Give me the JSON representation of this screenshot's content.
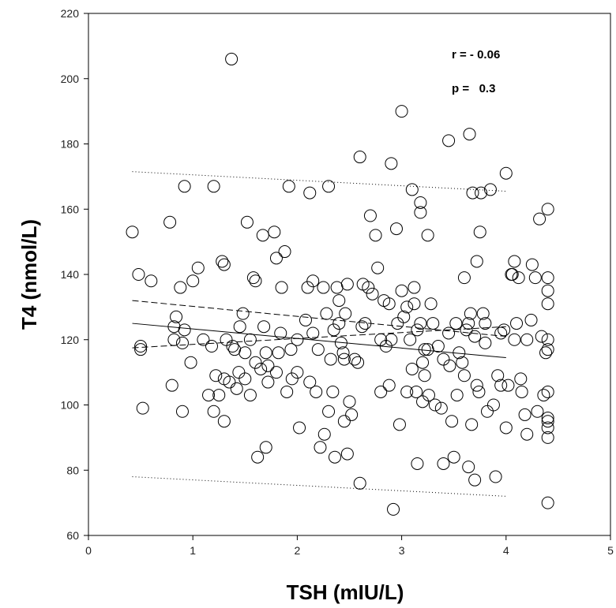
{
  "chart_data": {
    "type": "scatter",
    "title": "",
    "xlabel": "TSH (mIU/L)",
    "ylabel": "T4 (nmol/L)",
    "xlim": [
      0,
      5
    ],
    "ylim": [
      60,
      220
    ],
    "xticks": [
      0,
      1,
      2,
      3,
      4,
      5
    ],
    "yticks": [
      60,
      80,
      100,
      120,
      140,
      160,
      180,
      200,
      220
    ],
    "grid": false,
    "annotations": [
      {
        "label": "r = - 0.06"
      },
      {
        "label": "p =   0.3"
      }
    ],
    "regression": {
      "x": [
        0.42,
        4.0
      ],
      "y": [
        125,
        114.5
      ]
    },
    "confidence_band": {
      "upper": {
        "x": [
          0.42,
          4.0
        ],
        "y": [
          132,
          121
        ]
      },
      "lower": {
        "x": [
          0.42,
          4.0
        ],
        "y": [
          117.5,
          124
        ]
      }
    },
    "prediction_band": {
      "upper": {
        "x": [
          0.42,
          4.0
        ],
        "y": [
          171.5,
          165.5
        ]
      },
      "lower": {
        "x": [
          0.42,
          4.0
        ],
        "y": [
          78,
          72
        ]
      }
    },
    "points": [
      [
        0.42,
        153
      ],
      [
        0.48,
        140
      ],
      [
        0.5,
        117
      ],
      [
        0.5,
        118
      ],
      [
        0.52,
        99
      ],
      [
        0.6,
        138
      ],
      [
        0.78,
        156
      ],
      [
        0.8,
        106
      ],
      [
        0.82,
        120
      ],
      [
        0.82,
        124
      ],
      [
        0.84,
        127
      ],
      [
        0.88,
        136
      ],
      [
        0.9,
        98
      ],
      [
        0.9,
        119
      ],
      [
        0.92,
        123
      ],
      [
        0.92,
        167
      ],
      [
        0.98,
        113
      ],
      [
        1.0,
        138
      ],
      [
        1.05,
        142
      ],
      [
        1.1,
        120
      ],
      [
        1.15,
        103
      ],
      [
        1.18,
        118
      ],
      [
        1.2,
        167
      ],
      [
        1.2,
        98
      ],
      [
        1.22,
        109
      ],
      [
        1.25,
        103
      ],
      [
        1.28,
        144
      ],
      [
        1.3,
        143
      ],
      [
        1.3,
        108
      ],
      [
        1.3,
        95
      ],
      [
        1.32,
        120
      ],
      [
        1.35,
        107
      ],
      [
        1.37,
        206
      ],
      [
        1.38,
        118
      ],
      [
        1.4,
        117
      ],
      [
        1.42,
        105
      ],
      [
        1.44,
        110
      ],
      [
        1.45,
        124
      ],
      [
        1.48,
        128
      ],
      [
        1.5,
        116
      ],
      [
        1.5,
        108
      ],
      [
        1.52,
        156
      ],
      [
        1.55,
        103
      ],
      [
        1.55,
        120
      ],
      [
        1.58,
        139
      ],
      [
        1.6,
        138
      ],
      [
        1.6,
        113
      ],
      [
        1.62,
        84
      ],
      [
        1.65,
        111
      ],
      [
        1.67,
        152
      ],
      [
        1.68,
        124
      ],
      [
        1.7,
        87
      ],
      [
        1.7,
        116
      ],
      [
        1.72,
        112
      ],
      [
        1.72,
        107
      ],
      [
        1.78,
        153
      ],
      [
        1.8,
        145
      ],
      [
        1.8,
        110
      ],
      [
        1.82,
        116
      ],
      [
        1.84,
        122
      ],
      [
        1.85,
        136
      ],
      [
        1.88,
        147
      ],
      [
        1.9,
        104
      ],
      [
        1.92,
        167
      ],
      [
        1.94,
        117
      ],
      [
        1.95,
        108
      ],
      [
        2.0,
        110
      ],
      [
        2.0,
        120
      ],
      [
        2.02,
        93
      ],
      [
        2.08,
        126
      ],
      [
        2.1,
        136
      ],
      [
        2.12,
        165
      ],
      [
        2.12,
        107
      ],
      [
        2.15,
        138
      ],
      [
        2.15,
        122
      ],
      [
        2.18,
        104
      ],
      [
        2.2,
        117
      ],
      [
        2.22,
        87
      ],
      [
        2.25,
        136
      ],
      [
        2.26,
        91
      ],
      [
        2.28,
        128
      ],
      [
        2.3,
        167
      ],
      [
        2.3,
        98
      ],
      [
        2.32,
        114
      ],
      [
        2.34,
        104
      ],
      [
        2.35,
        123
      ],
      [
        2.36,
        84
      ],
      [
        2.38,
        136
      ],
      [
        2.4,
        125
      ],
      [
        2.4,
        132
      ],
      [
        2.42,
        119
      ],
      [
        2.44,
        116
      ],
      [
        2.45,
        114
      ],
      [
        2.45,
        95
      ],
      [
        2.46,
        128
      ],
      [
        2.48,
        137
      ],
      [
        2.48,
        85
      ],
      [
        2.5,
        101
      ],
      [
        2.52,
        97
      ],
      [
        2.55,
        114
      ],
      [
        2.58,
        113
      ],
      [
        2.6,
        176
      ],
      [
        2.6,
        76
      ],
      [
        2.62,
        124
      ],
      [
        2.63,
        137
      ],
      [
        2.65,
        125
      ],
      [
        2.68,
        136
      ],
      [
        2.7,
        158
      ],
      [
        2.72,
        134
      ],
      [
        2.75,
        152
      ],
      [
        2.77,
        142
      ],
      [
        2.8,
        120
      ],
      [
        2.8,
        104
      ],
      [
        2.83,
        132
      ],
      [
        2.85,
        118
      ],
      [
        2.88,
        106
      ],
      [
        2.88,
        131
      ],
      [
        2.9,
        174
      ],
      [
        2.9,
        120
      ],
      [
        2.92,
        68
      ],
      [
        2.95,
        154
      ],
      [
        2.96,
        125
      ],
      [
        2.98,
        94
      ],
      [
        3.0,
        190
      ],
      [
        3.0,
        135
      ],
      [
        3.02,
        127
      ],
      [
        3.05,
        130
      ],
      [
        3.05,
        104
      ],
      [
        3.08,
        120
      ],
      [
        3.1,
        166
      ],
      [
        3.1,
        111
      ],
      [
        3.12,
        131
      ],
      [
        3.12,
        136
      ],
      [
        3.14,
        104
      ],
      [
        3.15,
        123
      ],
      [
        3.15,
        82
      ],
      [
        3.18,
        162
      ],
      [
        3.18,
        159
      ],
      [
        3.18,
        125
      ],
      [
        3.2,
        113
      ],
      [
        3.2,
        101
      ],
      [
        3.22,
        109
      ],
      [
        3.22,
        117
      ],
      [
        3.25,
        152
      ],
      [
        3.25,
        117
      ],
      [
        3.26,
        103
      ],
      [
        3.28,
        131
      ],
      [
        3.3,
        125
      ],
      [
        3.32,
        100
      ],
      [
        3.35,
        118
      ],
      [
        3.38,
        99
      ],
      [
        3.4,
        114
      ],
      [
        3.4,
        82
      ],
      [
        3.45,
        181
      ],
      [
        3.45,
        122
      ],
      [
        3.46,
        112
      ],
      [
        3.48,
        95
      ],
      [
        3.5,
        84
      ],
      [
        3.52,
        125
      ],
      [
        3.53,
        103
      ],
      [
        3.55,
        116
      ],
      [
        3.58,
        113
      ],
      [
        3.6,
        139
      ],
      [
        3.6,
        109
      ],
      [
        3.62,
        123
      ],
      [
        3.64,
        125
      ],
      [
        3.64,
        81
      ],
      [
        3.65,
        183
      ],
      [
        3.66,
        128
      ],
      [
        3.67,
        94
      ],
      [
        3.68,
        165
      ],
      [
        3.7,
        121
      ],
      [
        3.7,
        77
      ],
      [
        3.72,
        144
      ],
      [
        3.72,
        106
      ],
      [
        3.74,
        104
      ],
      [
        3.75,
        153
      ],
      [
        3.76,
        165
      ],
      [
        3.78,
        128
      ],
      [
        3.8,
        125
      ],
      [
        3.8,
        119
      ],
      [
        3.82,
        98
      ],
      [
        3.85,
        166
      ],
      [
        3.88,
        100
      ],
      [
        3.9,
        78
      ],
      [
        3.92,
        109
      ],
      [
        3.95,
        122
      ],
      [
        3.95,
        106
      ],
      [
        3.98,
        123
      ],
      [
        4.0,
        171
      ],
      [
        4.0,
        93
      ],
      [
        4.02,
        106
      ],
      [
        4.05,
        140
      ],
      [
        4.06,
        140
      ],
      [
        4.08,
        120
      ],
      [
        4.08,
        144
      ],
      [
        4.1,
        125
      ],
      [
        4.12,
        139
      ],
      [
        4.14,
        108
      ],
      [
        4.15,
        104
      ],
      [
        4.18,
        97
      ],
      [
        4.2,
        91
      ],
      [
        4.2,
        120
      ],
      [
        4.24,
        126
      ],
      [
        4.25,
        143
      ],
      [
        4.28,
        139
      ],
      [
        4.3,
        98
      ],
      [
        4.32,
        157
      ],
      [
        4.34,
        121
      ],
      [
        4.36,
        103
      ],
      [
        4.38,
        116
      ],
      [
        4.4,
        160
      ],
      [
        4.4,
        131
      ],
      [
        4.4,
        135
      ],
      [
        4.4,
        139
      ],
      [
        4.4,
        120
      ],
      [
        4.4,
        117
      ],
      [
        4.4,
        104
      ],
      [
        4.4,
        96
      ],
      [
        4.4,
        95
      ],
      [
        4.4,
        93
      ],
      [
        4.4,
        90
      ],
      [
        4.4,
        70
      ]
    ]
  }
}
